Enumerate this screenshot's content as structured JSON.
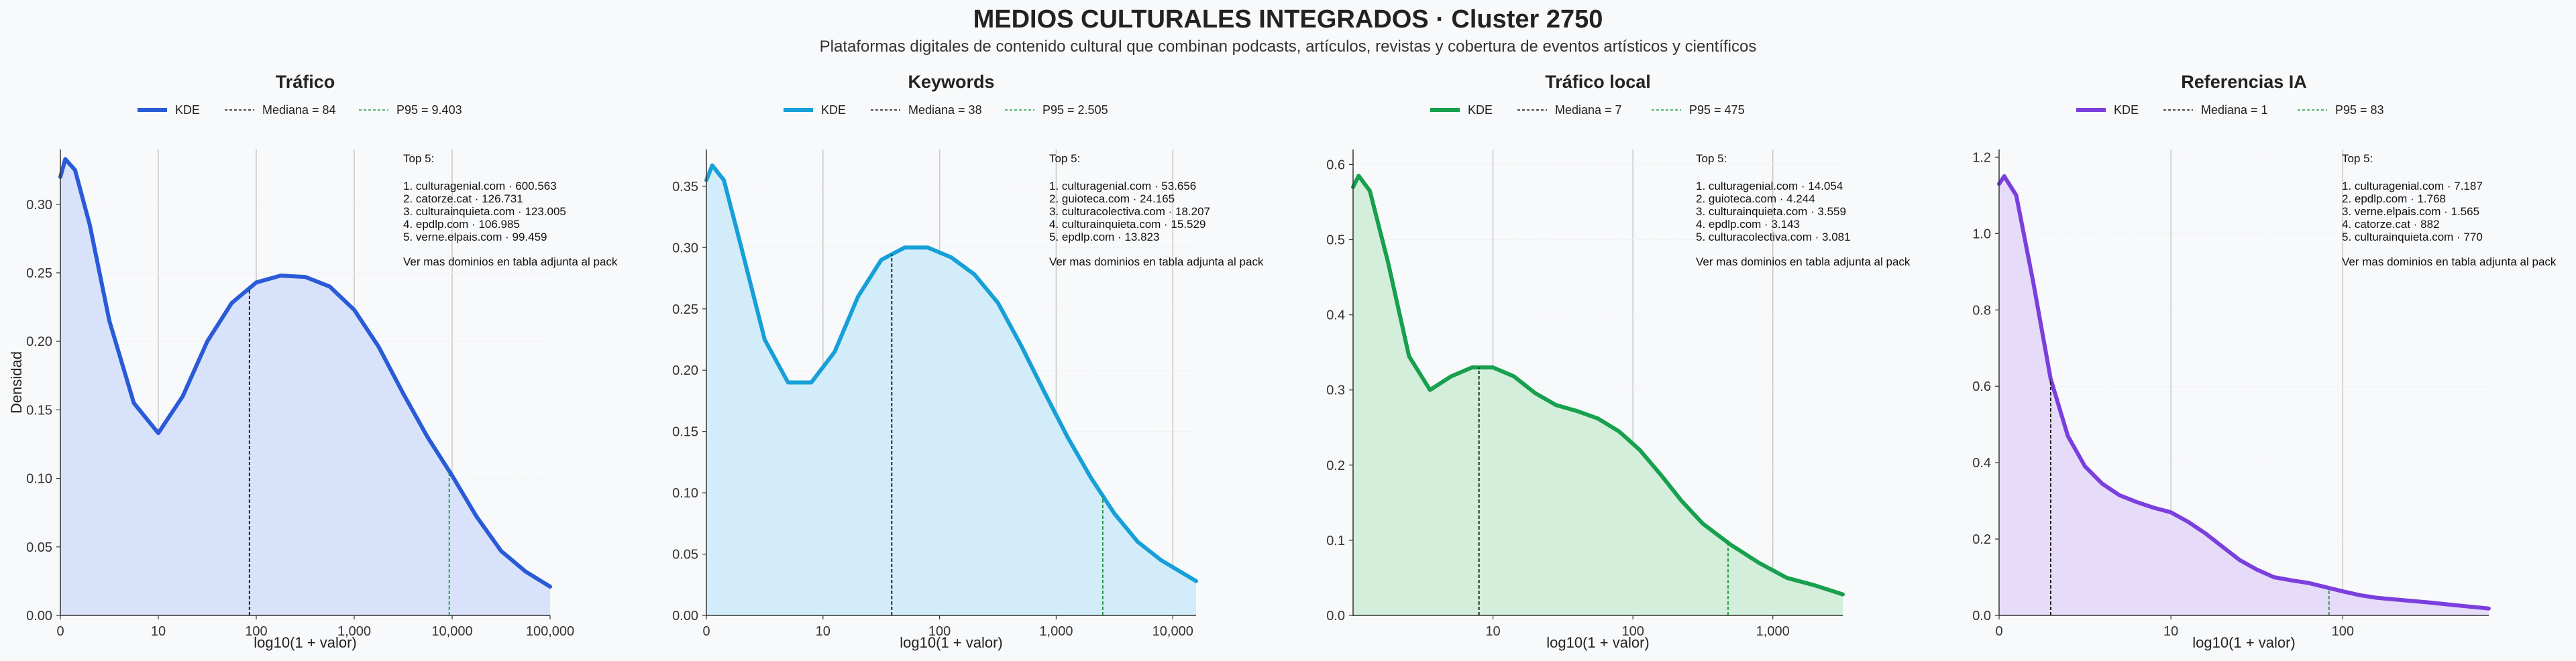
{
  "title": "MEDIOS CULTURALES INTEGRADOS · Cluster 2750",
  "subtitle": "Plataformas digitales de contenido cultural que combinan podcasts, artículos, revistas y cobertura de eventos artísticos y científicos",
  "chart_data": [
    {
      "type": "area",
      "title": "Tráfico",
      "xlabel": "log10(1 + valor)",
      "ylabel": "Densidad",
      "color": "#2a5bd7",
      "fill": "#d8e2fa",
      "legend": [
        "KDE",
        "Mediana = 84",
        "P95 = 9.403"
      ],
      "xmax": 5.0,
      "ylim": [
        0,
        0.34
      ],
      "yticks": [
        0.0,
        0.05,
        0.1,
        0.15,
        0.2,
        0.25,
        0.3
      ],
      "ytick_labels": [
        "0.00",
        "0.05",
        "0.10",
        "0.15",
        "0.20",
        "0.25",
        "0.30"
      ],
      "xticks": [
        0,
        1,
        2,
        3,
        4,
        5
      ],
      "xtick_labels": [
        "0",
        "10",
        "100",
        "1,000",
        "10,000",
        "100,000"
      ],
      "median_x": 1.93,
      "p95_x": 3.97,
      "x": [
        0,
        0.05,
        0.15,
        0.3,
        0.5,
        0.75,
        1.0,
        1.25,
        1.5,
        1.75,
        2.0,
        2.25,
        2.5,
        2.75,
        3.0,
        3.25,
        3.5,
        3.75,
        4.0,
        4.25,
        4.5,
        4.75,
        5.0
      ],
      "y": [
        0.32,
        0.333,
        0.325,
        0.285,
        0.215,
        0.155,
        0.133,
        0.16,
        0.2,
        0.228,
        0.243,
        0.248,
        0.247,
        0.24,
        0.223,
        0.196,
        0.162,
        0.13,
        0.102,
        0.072,
        0.047,
        0.032,
        0.021
      ],
      "top5_header": "Top 5:",
      "top5": [
        "1. culturagenial.com · 600.563",
        "2. catorze.cat · 126.731",
        "3. culturainquieta.com · 123.005",
        "4. epdlp.com · 106.985",
        "5. verne.elpais.com · 99.459"
      ],
      "footer": "Ver mas dominios en tabla adjunta al pack"
    },
    {
      "type": "area",
      "title": "Keywords",
      "xlabel": "log10(1 + valor)",
      "ylabel": "",
      "color": "#17a0d8",
      "fill": "#d2edf9",
      "legend": [
        "KDE",
        "Mediana = 38",
        "P95 = 2.505"
      ],
      "xmax": 4.2,
      "ylim": [
        0,
        0.38
      ],
      "yticks": [
        0.0,
        0.05,
        0.1,
        0.15,
        0.2,
        0.25,
        0.3,
        0.35
      ],
      "ytick_labels": [
        "0.00",
        "0.05",
        "0.10",
        "0.15",
        "0.20",
        "0.25",
        "0.30",
        "0.35"
      ],
      "xticks": [
        0,
        1,
        2,
        3,
        4
      ],
      "xtick_labels": [
        "0",
        "10",
        "100",
        "1,000",
        "10,000"
      ],
      "median_x": 1.59,
      "p95_x": 3.4,
      "x": [
        0,
        0.05,
        0.15,
        0.3,
        0.5,
        0.7,
        0.9,
        1.1,
        1.3,
        1.5,
        1.7,
        1.9,
        2.1,
        2.3,
        2.5,
        2.7,
        2.9,
        3.1,
        3.3,
        3.5,
        3.7,
        3.9,
        4.2
      ],
      "y": [
        0.355,
        0.367,
        0.355,
        0.3,
        0.225,
        0.19,
        0.19,
        0.215,
        0.26,
        0.29,
        0.3,
        0.3,
        0.292,
        0.278,
        0.255,
        0.22,
        0.182,
        0.145,
        0.112,
        0.083,
        0.06,
        0.045,
        0.028
      ],
      "top5_header": "Top 5:",
      "top5": [
        "1. culturagenial.com · 53.656",
        "2. guioteca.com · 24.165",
        "3. culturacolectiva.com · 18.207",
        "4. culturainquieta.com · 15.529",
        "5. epdlp.com · 13.823"
      ],
      "footer": "Ver mas dominios en tabla adjunta al pack"
    },
    {
      "type": "area",
      "title": "Tráfico local",
      "xlabel": "log10(1 + valor)",
      "ylabel": "",
      "color": "#17a04d",
      "fill": "#d3eedb",
      "legend": [
        "KDE",
        "Mediana = 7",
        "P95 = 475"
      ],
      "xmax": 3.5,
      "ylim": [
        0,
        0.62
      ],
      "yticks": [
        0.0,
        0.1,
        0.2,
        0.3,
        0.4,
        0.5,
        0.6
      ],
      "ytick_labels": [
        "0.0",
        "0.1",
        "0.2",
        "0.3",
        "0.4",
        "0.5",
        "0.6"
      ],
      "xticks": [
        1,
        2,
        3
      ],
      "xtick_labels": [
        "10",
        "100",
        "1,000"
      ],
      "median_x": 0.9,
      "p95_x": 2.68,
      "x": [
        0,
        0.04,
        0.12,
        0.25,
        0.4,
        0.55,
        0.7,
        0.85,
        1.0,
        1.15,
        1.3,
        1.45,
        1.6,
        1.75,
        1.9,
        2.05,
        2.2,
        2.35,
        2.5,
        2.7,
        2.9,
        3.1,
        3.3,
        3.5
      ],
      "y": [
        0.57,
        0.585,
        0.565,
        0.47,
        0.345,
        0.3,
        0.318,
        0.33,
        0.33,
        0.318,
        0.296,
        0.28,
        0.272,
        0.262,
        0.245,
        0.22,
        0.187,
        0.152,
        0.122,
        0.094,
        0.07,
        0.05,
        0.04,
        0.028
      ],
      "top5_header": "Top 5:",
      "top5": [
        "1. culturagenial.com · 14.054",
        "2. guioteca.com · 4.244",
        "3. culturainquieta.com · 3.559",
        "4. epdlp.com · 3.143",
        "5. culturacolectiva.com · 3.081"
      ],
      "footer": "Ver mas dominios en tabla adjunta al pack"
    },
    {
      "type": "area",
      "title": "Referencias IA",
      "xlabel": "log10(1 + valor)",
      "ylabel": "",
      "color": "#7b3fdd",
      "fill": "#e6dbf8",
      "legend": [
        "KDE",
        "Mediana = 1",
        "P95 = 83"
      ],
      "xmax": 2.85,
      "ylim": [
        0,
        1.22
      ],
      "yticks": [
        0.0,
        0.2,
        0.4,
        0.6,
        0.8,
        1.0,
        1.2
      ],
      "ytick_labels": [
        "0.0",
        "0.2",
        "0.4",
        "0.6",
        "0.8",
        "1.0",
        "1.2"
      ],
      "xticks": [
        0,
        1,
        2
      ],
      "xtick_labels": [
        "0",
        "10",
        "100"
      ],
      "median_x": 0.3,
      "p95_x": 1.92,
      "x": [
        0,
        0.03,
        0.1,
        0.2,
        0.3,
        0.4,
        0.5,
        0.6,
        0.7,
        0.8,
        0.9,
        1.0,
        1.1,
        1.2,
        1.3,
        1.4,
        1.5,
        1.6,
        1.7,
        1.8,
        1.9,
        2.0,
        2.1,
        2.2,
        2.35,
        2.5,
        2.65,
        2.85
      ],
      "y": [
        1.13,
        1.15,
        1.1,
        0.87,
        0.62,
        0.47,
        0.39,
        0.345,
        0.315,
        0.297,
        0.282,
        0.27,
        0.245,
        0.215,
        0.18,
        0.145,
        0.12,
        0.1,
        0.092,
        0.085,
        0.074,
        0.063,
        0.053,
        0.046,
        0.04,
        0.034,
        0.027,
        0.018
      ],
      "top5_header": "Top 5:",
      "top5": [
        "1. culturagenial.com · 7.187",
        "2. epdlp.com · 1.768",
        "3. verne.elpais.com · 1.565",
        "4. catorze.cat · 882",
        "5. culturainquieta.com · 770"
      ],
      "footer": "Ver mas dominios en tabla adjunta al pack"
    }
  ]
}
